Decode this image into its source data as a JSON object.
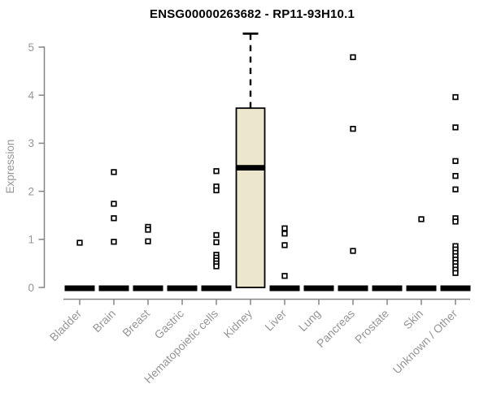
{
  "chart_data": {
    "type": "boxplot",
    "title": "ENSG00000263682 - RP11-93H10.1",
    "ylabel": "Expression",
    "ylim": [
      0,
      5
    ],
    "yticks": [
      0,
      1,
      2,
      3,
      4,
      5
    ],
    "categories": [
      "Bladder",
      "Brain",
      "Breast",
      "Gastric",
      "Hematopoietic cells",
      "Kidney",
      "Liver",
      "Lung",
      "Pancreas",
      "Prostate",
      "Skin",
      "Unknown / Other"
    ],
    "legend": "none",
    "grid": "off",
    "colors": {
      "box_fill": "#ECE7CC",
      "box_stroke": "#000000",
      "axis": "#858585",
      "label_text": "#969696",
      "title_text": "#000000",
      "outlier_fill": "#ffffff"
    },
    "groups": [
      {
        "category": "Bladder",
        "q1": 0,
        "median": 0,
        "q3": 0,
        "whisker_low": 0,
        "whisker_high": 0,
        "outliers": [
          0.93
        ]
      },
      {
        "category": "Brain",
        "q1": 0,
        "median": 0,
        "q3": 0,
        "whisker_low": 0,
        "whisker_high": 0,
        "outliers": [
          2.4,
          1.74,
          1.44,
          0.95
        ]
      },
      {
        "category": "Breast",
        "q1": 0,
        "median": 0,
        "q3": 0,
        "whisker_low": 0,
        "whisker_high": 0,
        "outliers": [
          1.26,
          1.2,
          0.96
        ]
      },
      {
        "category": "Gastric",
        "q1": 0,
        "median": 0,
        "q3": 0,
        "whisker_low": 0,
        "whisker_high": 0,
        "outliers": []
      },
      {
        "category": "Hematopoietic cells",
        "q1": 0,
        "median": 0,
        "q3": 0,
        "whisker_low": 0,
        "whisker_high": 0,
        "outliers": [
          2.42,
          2.1,
          2.02,
          1.09,
          0.94,
          0.68,
          0.62,
          0.56,
          0.5,
          0.44
        ]
      },
      {
        "category": "Kidney",
        "q1": 0,
        "median": 2.49,
        "q3": 3.73,
        "whisker_low": 0,
        "whisker_high": 5.28,
        "outliers": []
      },
      {
        "category": "Liver",
        "q1": 0,
        "median": 0,
        "q3": 0,
        "whisker_low": 0,
        "whisker_high": 0,
        "outliers": [
          1.23,
          1.12,
          0.88,
          0.24
        ]
      },
      {
        "category": "Lung",
        "q1": 0,
        "median": 0,
        "q3": 0,
        "whisker_low": 0,
        "whisker_high": 0,
        "outliers": []
      },
      {
        "category": "Pancreas",
        "q1": 0,
        "median": 0,
        "q3": 0,
        "whisker_low": 0,
        "whisker_high": 0,
        "outliers": [
          4.79,
          3.3,
          0.76
        ]
      },
      {
        "category": "Prostate",
        "q1": 0,
        "median": 0,
        "q3": 0,
        "whisker_low": 0,
        "whisker_high": 0,
        "outliers": []
      },
      {
        "category": "Skin",
        "q1": 0,
        "median": 0,
        "q3": 0,
        "whisker_low": 0,
        "whisker_high": 0,
        "outliers": [
          1.42
        ]
      },
      {
        "category": "Unknown / Other",
        "q1": 0,
        "median": 0,
        "q3": 0,
        "whisker_low": 0,
        "whisker_high": 0,
        "outliers": [
          3.96,
          3.33,
          2.63,
          2.32,
          2.04,
          1.44,
          1.37,
          0.86,
          0.79,
          0.72,
          0.65,
          0.58,
          0.51,
          0.44,
          0.37,
          0.3
        ]
      }
    ]
  }
}
